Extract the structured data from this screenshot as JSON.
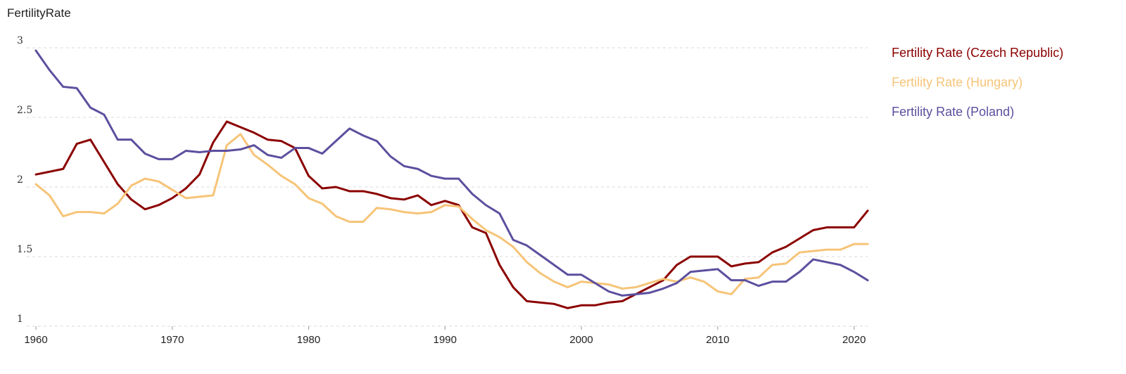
{
  "chart_data": {
    "type": "line",
    "ylabel": "FertilityRate",
    "xlabel": "",
    "ylim": [
      1,
      3
    ],
    "xlim": [
      1960,
      2021
    ],
    "yticks": [
      "1",
      "1.5",
      "2",
      "2.5",
      "3"
    ],
    "xticks": [
      "1960",
      "1970",
      "1980",
      "1990",
      "2000",
      "2010",
      "2020"
    ],
    "grid": "horizontal-dashed",
    "legend_position": "top-right",
    "x": [
      1960,
      1961,
      1962,
      1963,
      1964,
      1965,
      1966,
      1967,
      1968,
      1969,
      1970,
      1971,
      1972,
      1973,
      1974,
      1975,
      1976,
      1977,
      1978,
      1979,
      1980,
      1981,
      1982,
      1983,
      1984,
      1985,
      1986,
      1987,
      1988,
      1989,
      1990,
      1991,
      1992,
      1993,
      1994,
      1995,
      1996,
      1997,
      1998,
      1999,
      2000,
      2001,
      2002,
      2003,
      2004,
      2005,
      2006,
      2007,
      2008,
      2009,
      2010,
      2011,
      2012,
      2013,
      2014,
      2015,
      2016,
      2017,
      2018,
      2019,
      2020,
      2021
    ],
    "series": [
      {
        "name": "Fertility Rate (Czech Republic)",
        "color": "#8b0000",
        "values": [
          2.09,
          2.11,
          2.13,
          2.31,
          2.34,
          2.18,
          2.02,
          1.91,
          1.84,
          1.87,
          1.92,
          1.99,
          2.09,
          2.32,
          2.47,
          2.43,
          2.39,
          2.34,
          2.33,
          2.28,
          2.08,
          1.99,
          2.0,
          1.97,
          1.97,
          1.95,
          1.92,
          1.91,
          1.94,
          1.87,
          1.9,
          1.87,
          1.71,
          1.67,
          1.44,
          1.28,
          1.18,
          1.17,
          1.16,
          1.13,
          1.15,
          1.15,
          1.17,
          1.18,
          1.23,
          1.28,
          1.33,
          1.44,
          1.5,
          1.5,
          1.5,
          1.43,
          1.45,
          1.46,
          1.53,
          1.57,
          1.63,
          1.69,
          1.71,
          1.71,
          1.71,
          1.83
        ]
      },
      {
        "name": "Fertility Rate (Hungary)",
        "color": "#f6c478",
        "values": [
          2.02,
          1.94,
          1.79,
          1.82,
          1.82,
          1.81,
          1.88,
          2.01,
          2.06,
          2.04,
          1.98,
          1.92,
          1.93,
          1.94,
          2.3,
          2.38,
          2.23,
          2.16,
          2.08,
          2.02,
          1.92,
          1.88,
          1.79,
          1.75,
          1.75,
          1.85,
          1.84,
          1.82,
          1.81,
          1.82,
          1.87,
          1.86,
          1.77,
          1.69,
          1.64,
          1.57,
          1.46,
          1.38,
          1.32,
          1.28,
          1.32,
          1.31,
          1.3,
          1.27,
          1.28,
          1.31,
          1.34,
          1.32,
          1.35,
          1.32,
          1.25,
          1.23,
          1.34,
          1.35,
          1.44,
          1.45,
          1.53,
          1.54,
          1.55,
          1.55,
          1.59,
          1.59
        ]
      },
      {
        "name": "Fertility Rate (Poland)",
        "color": "#5c4f9e",
        "values": [
          2.98,
          2.84,
          2.72,
          2.71,
          2.57,
          2.52,
          2.34,
          2.34,
          2.24,
          2.2,
          2.2,
          2.26,
          2.25,
          2.26,
          2.26,
          2.27,
          2.3,
          2.23,
          2.21,
          2.28,
          2.28,
          2.24,
          2.33,
          2.42,
          2.37,
          2.33,
          2.22,
          2.15,
          2.13,
          2.08,
          2.06,
          2.06,
          1.95,
          1.87,
          1.81,
          1.62,
          1.58,
          1.51,
          1.44,
          1.37,
          1.37,
          1.31,
          1.25,
          1.22,
          1.23,
          1.24,
          1.27,
          1.31,
          1.39,
          1.4,
          1.41,
          1.33,
          1.33,
          1.29,
          1.32,
          1.32,
          1.39,
          1.48,
          1.46,
          1.44,
          1.39,
          1.33
        ]
      }
    ]
  }
}
